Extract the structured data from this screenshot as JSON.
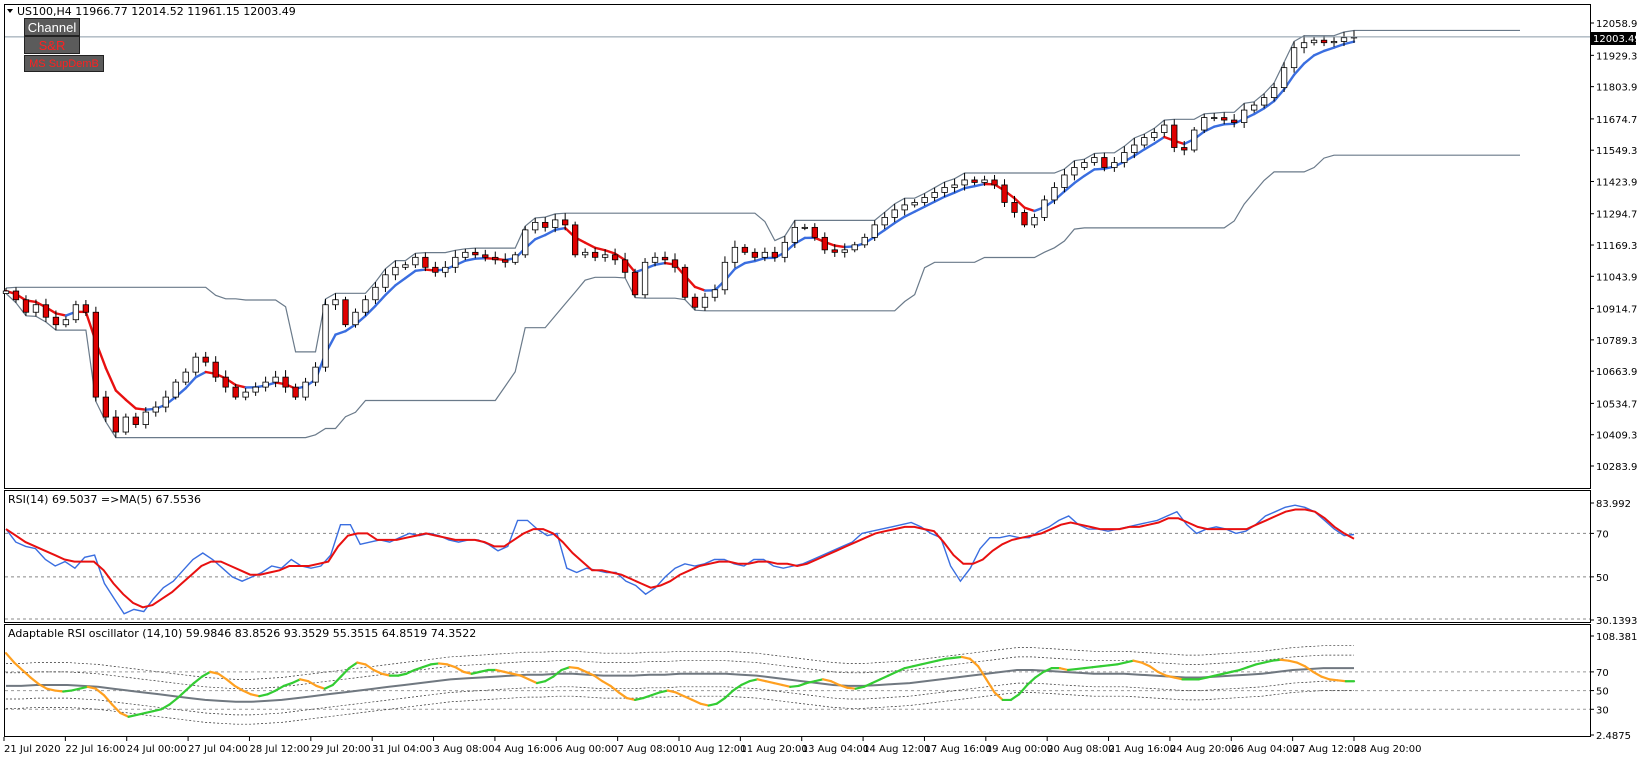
{
  "header": {
    "symbol_line": "US100,H4  11966.77 12014.52 11961.15 12003.49",
    "current_price": "12003.49"
  },
  "buttons": {
    "channel": "Channel",
    "sr": "S&R",
    "supdem": "MS SupDemB"
  },
  "panes": {
    "rsi_label": "RSI(14) 69.5037  =>MA(5) 67.5536",
    "arsi_label": "Adaptable RSI oscillator (14,10) 59.9846 83.8526 93.3529 55.3515 64.8519 74.3522"
  },
  "colors": {
    "bull_candle": "#ffffff",
    "bear_candle": "#e00000",
    "band_line": "#6a7a8a",
    "mid_up": "#3a6ee0",
    "mid_down": "#e81010",
    "rsi_line": "#3a6ee0",
    "rsi_ma": "#e81010",
    "arsi_up": "#33cc33",
    "arsi_down": "#ffa020",
    "arsi_signal": "#707880"
  },
  "chart_data": [
    {
      "type": "candlestick",
      "name": "US100,H4",
      "y_ticks": [
        "12058.90",
        "11929.30",
        "11803.90",
        "11674.70",
        "11549.30",
        "11423.90",
        "11294.70",
        "11169.30",
        "11043.90",
        "10914.70",
        "10789.30",
        "10663.90",
        "10534.70",
        "10409.30",
        "10283.90"
      ],
      "ylim": [
        10283.9,
        12058.9
      ],
      "x_ticks": [
        "21 Jul 2020",
        "22 Jul 16:00",
        "24 Jul 00:00",
        "27 Jul 04:00",
        "28 Jul 12:00",
        "29 Jul 20:00",
        "31 Jul 04:00",
        "3 Aug 08:00",
        "4 Aug 16:00",
        "6 Aug 00:00",
        "7 Aug 08:00",
        "10 Aug 12:00",
        "11 Aug 20:00",
        "13 Aug 04:00",
        "14 Aug 12:00",
        "17 Aug 16:00",
        "19 Aug 00:00",
        "20 Aug 08:00",
        "21 Aug 16:00",
        "24 Aug 20:00",
        "26 Aug 04:00",
        "27 Aug 12:00",
        "28 Aug 20:00"
      ],
      "close_path": [
        10985,
        10950,
        10900,
        10930,
        10880,
        10850,
        10870,
        10930,
        10900,
        10560,
        10480,
        10420,
        10480,
        10450,
        10500,
        10520,
        10560,
        10620,
        10660,
        10720,
        10700,
        10640,
        10600,
        10560,
        10580,
        10600,
        10620,
        10640,
        10600,
        10560,
        10620,
        10680,
        10930,
        10950,
        10850,
        10900,
        10950,
        11000,
        11050,
        11080,
        11090,
        11120,
        11080,
        11060,
        11080,
        11120,
        11140,
        11130,
        11120,
        11110,
        11100,
        11130,
        11230,
        11260,
        11240,
        11270,
        11250,
        11130,
        11140,
        11120,
        11130,
        11110,
        11060,
        10970,
        11100,
        11120,
        11110,
        11080,
        10960,
        10920,
        10960,
        10990,
        11100,
        11160,
        11140,
        11120,
        11140,
        11120,
        11180,
        11240,
        11240,
        11200,
        11150,
        11140,
        11150,
        11170,
        11200,
        11250,
        11280,
        11310,
        11330,
        11340,
        11360,
        11380,
        11400,
        11410,
        11430,
        11420,
        11430,
        11410,
        11340,
        11300,
        11250,
        11280,
        11350,
        11400,
        11450,
        11480,
        11500,
        11520,
        11480,
        11500,
        11540,
        11570,
        11600,
        11620,
        11650,
        11560,
        11550,
        11630,
        11680,
        11680,
        11670,
        11660,
        11710,
        11730,
        11760,
        11800,
        11880,
        11960,
        11980,
        11990,
        11980,
        11985,
        12000,
        12003
      ]
    },
    {
      "type": "line",
      "name": "RSI(14) 69.5037  =>MA(5) 67.5536",
      "y_ticks": [
        "83.992",
        "70",
        "50",
        "30.1393"
      ],
      "ylim": [
        30.1393,
        83.992
      ],
      "series": [
        {
          "name": "RSI(14)",
          "values": [
            72,
            66,
            64,
            63,
            58,
            55,
            57,
            54,
            59,
            60,
            47,
            40,
            33,
            35,
            34,
            40,
            45,
            48,
            53,
            58,
            61,
            58,
            54,
            50,
            48,
            50,
            52,
            55,
            54,
            58,
            55,
            54,
            55,
            60,
            74,
            74,
            65,
            66,
            67,
            66,
            68,
            70,
            69,
            70,
            69,
            67,
            66,
            67,
            67,
            65,
            62,
            64,
            76,
            76,
            72,
            69,
            70,
            54,
            52,
            54,
            53,
            52,
            52,
            48,
            46,
            42,
            45,
            50,
            54,
            56,
            55,
            56,
            58,
            58,
            56,
            55,
            58,
            58,
            55,
            54,
            55,
            56,
            58,
            60,
            62,
            64,
            66,
            70,
            71,
            72,
            73,
            74,
            75,
            73,
            70,
            68,
            55,
            48,
            54,
            63,
            68,
            68,
            69,
            68,
            68,
            71,
            73,
            76,
            78,
            74,
            72,
            72,
            71,
            72,
            73,
            74,
            75,
            76,
            78,
            80,
            74,
            70,
            72,
            73,
            72,
            70,
            71,
            74,
            78,
            80,
            82,
            83,
            82,
            80,
            76,
            72,
            69,
            69.5
          ]
        },
        {
          "name": "MA(5)",
          "values": [
            72,
            69,
            66,
            64,
            62,
            60,
            58,
            57,
            57,
            57,
            53,
            47,
            42,
            38,
            36,
            37,
            40,
            43,
            47,
            51,
            55,
            57,
            57,
            55,
            53,
            51,
            51,
            52,
            53,
            55,
            55,
            55,
            56,
            57,
            64,
            69,
            70,
            70,
            67,
            67,
            67,
            68,
            69,
            70,
            69,
            68,
            67,
            67,
            67,
            66,
            64,
            64,
            67,
            70,
            72,
            72,
            70,
            66,
            61,
            57,
            53,
            53,
            52,
            51,
            49,
            47,
            45,
            46,
            48,
            51,
            53,
            55,
            56,
            57,
            57,
            56,
            56,
            57,
            57,
            56,
            56,
            55,
            56,
            58,
            60,
            62,
            64,
            66,
            68,
            70,
            71,
            72,
            73,
            73,
            72,
            71,
            66,
            60,
            56,
            56,
            58,
            62,
            65,
            67,
            68,
            69,
            70,
            72,
            74,
            75,
            74,
            73,
            72,
            72,
            72,
            73,
            73,
            74,
            75,
            77,
            77,
            75,
            73,
            72,
            72,
            72,
            72,
            72,
            74,
            76,
            78,
            80,
            81,
            81,
            80,
            77,
            73,
            70,
            67.5536
          ]
        }
      ]
    },
    {
      "type": "line",
      "name": "Adaptable RSI oscillator (14,10) 59.9846 83.8526 93.3529 55.3515 64.8519 74.3522",
      "y_ticks": [
        "108.3812",
        "70",
        "50",
        "30",
        "2.4875"
      ],
      "ylim": [
        2.4875,
        108.3812
      ],
      "series": [
        {
          "name": "oscillator",
          "values": [
            90,
            80,
            72,
            64,
            57,
            52,
            50,
            49,
            50,
            52,
            54,
            52,
            45,
            35,
            26,
            22,
            24,
            26,
            28,
            30,
            35,
            42,
            50,
            58,
            65,
            70,
            68,
            62,
            55,
            50,
            46,
            44,
            46,
            50,
            55,
            58,
            62,
            60,
            55,
            52,
            56,
            65,
            74,
            80,
            78,
            72,
            68,
            66,
            66,
            68,
            72,
            75,
            78,
            79,
            78,
            75,
            70,
            68,
            70,
            72,
            72,
            70,
            68,
            66,
            62,
            58,
            60,
            65,
            72,
            75,
            74,
            70,
            66,
            60,
            55,
            48,
            42,
            40,
            42,
            45,
            48,
            50,
            48,
            44,
            40,
            36,
            34,
            36,
            42,
            50,
            56,
            60,
            62,
            60,
            58,
            56,
            54,
            55,
            58,
            60,
            62,
            60,
            56,
            53,
            52,
            54,
            58,
            62,
            66,
            70,
            74,
            76,
            78,
            80,
            82,
            84,
            85,
            86,
            84,
            76,
            62,
            48,
            40,
            40,
            46,
            56,
            64,
            70,
            74,
            74,
            72,
            73,
            74,
            75,
            76,
            77,
            78,
            80,
            82,
            80,
            76,
            70,
            66,
            64,
            62,
            62,
            62,
            64,
            66,
            68,
            70,
            72,
            75,
            78,
            80,
            82,
            83,
            82,
            80,
            76,
            70,
            65,
            62,
            61,
            60,
            60
          ]
        },
        {
          "name": "signal",
          "values": [
            55,
            55,
            56,
            56,
            56,
            55,
            54,
            52,
            50,
            48,
            46,
            44,
            42,
            40,
            39,
            38,
            38,
            39,
            40,
            42,
            44,
            46,
            48,
            50,
            52,
            54,
            56,
            58,
            60,
            62,
            63,
            64,
            65,
            66,
            67,
            67,
            68,
            68,
            67,
            66,
            66,
            66,
            67,
            67,
            68,
            68,
            68,
            68,
            67,
            66,
            64,
            62,
            60,
            58,
            56,
            55,
            55,
            56,
            57,
            58,
            60,
            62,
            64,
            66,
            68,
            70,
            72,
            72,
            71,
            70,
            69,
            68,
            68,
            68,
            67,
            66,
            65,
            64,
            64,
            65,
            66,
            67,
            68,
            70,
            72,
            73,
            74,
            74,
            74
          ]
        }
      ]
    }
  ]
}
